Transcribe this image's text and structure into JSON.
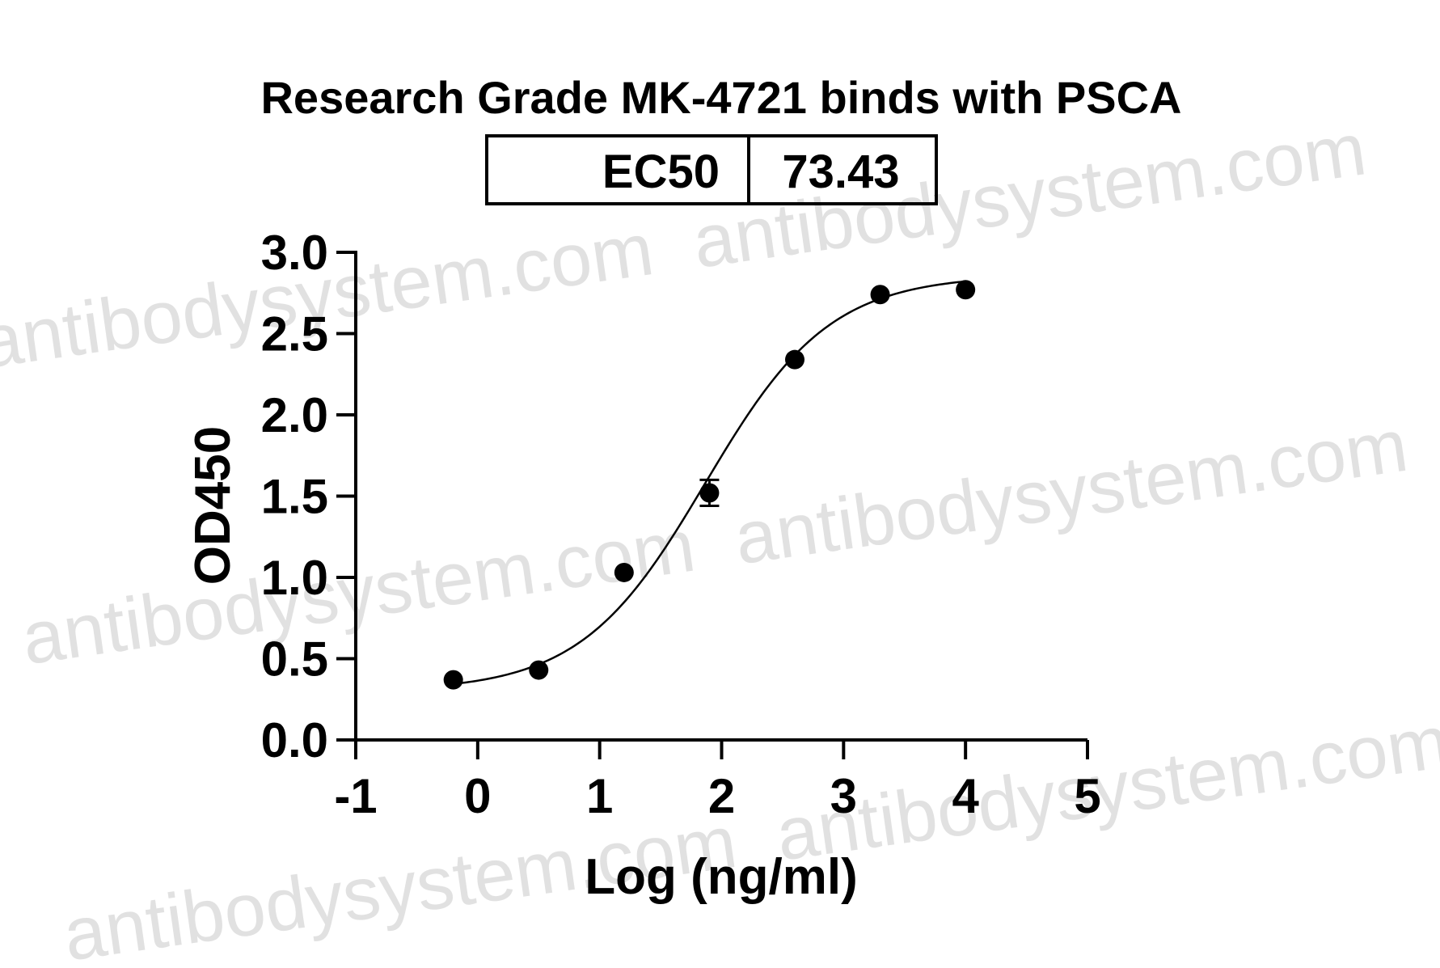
{
  "watermark": {
    "text": "antibodysystem.com",
    "color": "#c8c8c8"
  },
  "ec50": {
    "label": "EC50",
    "value": "73.43"
  },
  "chart_data": {
    "type": "scatter",
    "title": "Research Grade MK-4721 binds with PSCA",
    "xlabel": "Log (ng/ml)",
    "ylabel": "OD450",
    "xlim": [
      -1,
      5
    ],
    "ylim": [
      0,
      3.0
    ],
    "xticks": [
      -1,
      0,
      1,
      2,
      3,
      4,
      5
    ],
    "yticks": [
      0.0,
      0.5,
      1.0,
      1.5,
      2.0,
      2.5,
      3.0
    ],
    "xtick_labels": [
      "-1",
      "0",
      "1",
      "2",
      "3",
      "4",
      "5"
    ],
    "ytick_labels": [
      "0.0",
      "0.5",
      "1.0",
      "1.5",
      "2.0",
      "2.5",
      "3.0"
    ],
    "grid": false,
    "series": [
      {
        "points": [
          {
            "x": -0.2,
            "y": 0.37,
            "err": 0
          },
          {
            "x": 0.5,
            "y": 0.43,
            "err": 0
          },
          {
            "x": 1.2,
            "y": 1.03,
            "err": 0
          },
          {
            "x": 1.9,
            "y": 1.52,
            "err": 0.08
          },
          {
            "x": 2.6,
            "y": 2.34,
            "err": 0
          },
          {
            "x": 3.3,
            "y": 2.74,
            "err": 0
          },
          {
            "x": 4.0,
            "y": 2.77,
            "err": 0
          }
        ],
        "color": "#000000"
      }
    ],
    "fit": {
      "model": "4PL",
      "bottom": 0.3,
      "top": 2.86,
      "log_ec50": 1.866,
      "hill_slope": 0.85
    }
  }
}
